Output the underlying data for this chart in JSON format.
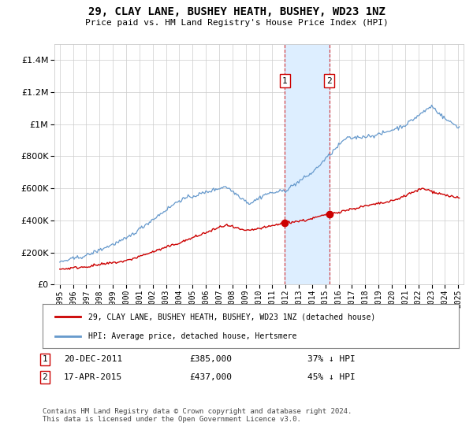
{
  "title": "29, CLAY LANE, BUSHEY HEATH, BUSHEY, WD23 1NZ",
  "subtitle": "Price paid vs. HM Land Registry's House Price Index (HPI)",
  "legend_line1": "29, CLAY LANE, BUSHEY HEATH, BUSHEY, WD23 1NZ (detached house)",
  "legend_line2": "HPI: Average price, detached house, Hertsmere",
  "annotation1_label": "1",
  "annotation1_date": "20-DEC-2011",
  "annotation1_price": "£385,000",
  "annotation1_hpi": "37% ↓ HPI",
  "annotation1_year": 2011.95,
  "annotation1_value": 385000,
  "annotation2_label": "2",
  "annotation2_date": "17-APR-2015",
  "annotation2_price": "£437,000",
  "annotation2_hpi": "45% ↓ HPI",
  "annotation2_year": 2015.29,
  "annotation2_value": 437000,
  "footnote": "Contains HM Land Registry data © Crown copyright and database right 2024.\nThis data is licensed under the Open Government Licence v3.0.",
  "red_color": "#cc0000",
  "blue_color": "#6699cc",
  "shaded_color": "#ddeeff",
  "annotation_box_color": "#cc0000",
  "background_color": "#ffffff",
  "xlim_start": 1994.6,
  "xlim_end": 2025.4,
  "yticks": [
    0,
    200000,
    400000,
    600000,
    800000,
    1000000,
    1200000,
    1400000
  ],
  "ylim_max": 1500000
}
